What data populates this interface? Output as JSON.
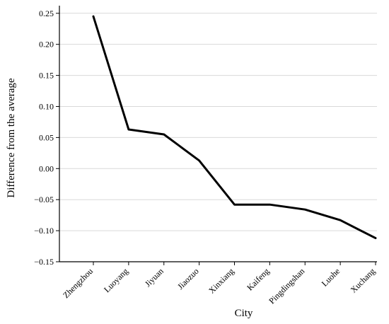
{
  "chart_data": {
    "type": "line",
    "title": "",
    "xlabel": "City",
    "ylabel": "Difference from the average",
    "categories": [
      "Zhengzhou",
      "Luoyang",
      "Jiyuan",
      "Jiaozuo",
      "Xinxiang",
      "Kaifeng",
      "Pingdingshan",
      "Luohe",
      "Xuchang"
    ],
    "series": [
      {
        "values": [
          0.245,
          0.063,
          0.055,
          0.013,
          -0.058,
          -0.058,
          -0.066,
          -0.083,
          -0.112
        ]
      }
    ],
    "ylim": [
      -0.15,
      0.26
    ],
    "yticks": [
      -0.15,
      -0.1,
      -0.05,
      0.0,
      0.05,
      0.1,
      0.15,
      0.2,
      0.25
    ],
    "ytick_labels": [
      "−0.15",
      "−0.10",
      "−0.05",
      "0.00",
      "0.05",
      "0.10",
      "0.15",
      "0.20",
      "0.25"
    ],
    "grid": "horizontal",
    "line_color": "#000000",
    "grid_color": "#d9d9d9"
  }
}
